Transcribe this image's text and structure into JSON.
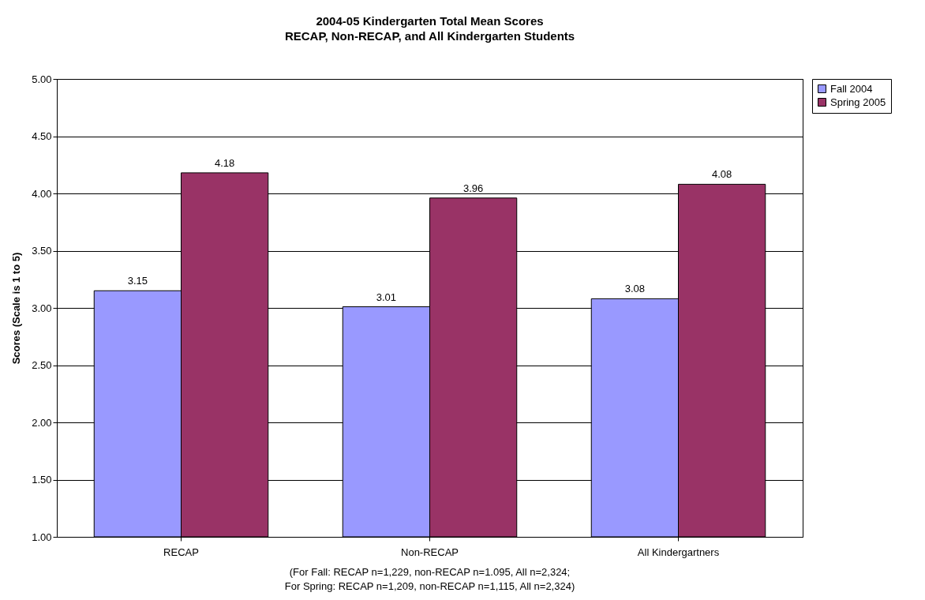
{
  "chart_data": {
    "type": "bar",
    "title": "2004-05 Kindergarten Total Mean Scores",
    "subtitle": "RECAP, Non-RECAP, and All Kindergarten Students",
    "ylabel": "Scores (Scale is 1 to 5)",
    "categories": [
      "RECAP",
      "Non-RECAP",
      "All Kindergartners"
    ],
    "series": [
      {
        "name": "Fall 2004",
        "color": "#9999ff",
        "values": [
          3.15,
          3.01,
          3.08
        ]
      },
      {
        "name": "Spring 2005",
        "color": "#993366",
        "values": [
          4.18,
          3.96,
          4.08
        ]
      }
    ],
    "ylim": [
      1,
      5
    ],
    "yticks": [
      {
        "value": 1,
        "label": "1.00"
      },
      {
        "value": 1.5,
        "label": "1.50"
      },
      {
        "value": 2,
        "label": "2.00"
      },
      {
        "value": 2.5,
        "label": "2.50"
      },
      {
        "value": 3,
        "label": "3.00"
      },
      {
        "value": 3.5,
        "label": "3.50"
      },
      {
        "value": 4,
        "label": "4.00"
      },
      {
        "value": 4.5,
        "label": "4.50"
      },
      {
        "value": 5,
        "label": "5.00"
      }
    ],
    "grid": "y",
    "legend": "right",
    "data_labels": true,
    "annotations": [
      "(For Fall: RECAP n=1,229, non-RECAP  n=1.095, All n=2,324;",
      "For Spring: RECAP n=1,209, non-RECAP  n=1,115, All n=2,324)"
    ]
  }
}
